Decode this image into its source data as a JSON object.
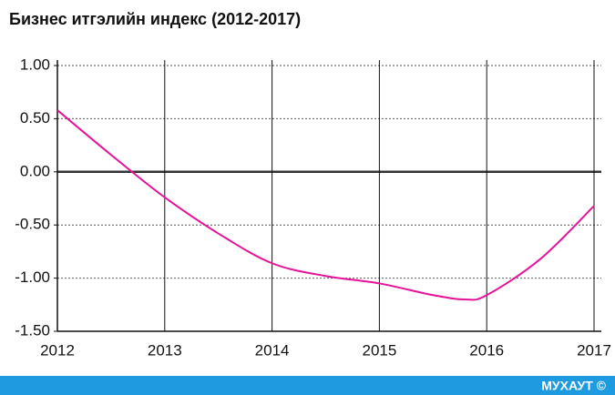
{
  "chart_data": {
    "type": "line",
    "title": "Бизнес итгэлийн индекс (2012-2017)",
    "x": [
      2012,
      2012.5,
      2013,
      2013.5,
      2014,
      2014.5,
      2015,
      2015.5,
      2015.8,
      2016,
      2016.5,
      2017
    ],
    "series": [
      {
        "color": "#e5139a",
        "values": [
          0.58,
          0.16,
          -0.24,
          -0.58,
          -0.86,
          -0.98,
          -1.05,
          -1.16,
          -1.2,
          -1.16,
          -0.82,
          -0.32
        ]
      }
    ],
    "xlim": [
      2012,
      2017
    ],
    "xticks": [
      2012,
      2013,
      2014,
      2015,
      2016,
      2017
    ],
    "ylim": [
      -1.5,
      1
    ],
    "yticks": [
      {
        "value": 1,
        "label": "1.00"
      },
      {
        "value": 0.5,
        "label": "0.50"
      },
      {
        "value": 0,
        "label": "0.00"
      },
      {
        "value": -0.5,
        "label": "-0.50"
      },
      {
        "value": -1,
        "label": "-1.00"
      },
      {
        "value": -1.5,
        "label": "-1.50"
      }
    ],
    "grid": true
  },
  "footer": {
    "text": "МУХАУТ ©"
  }
}
